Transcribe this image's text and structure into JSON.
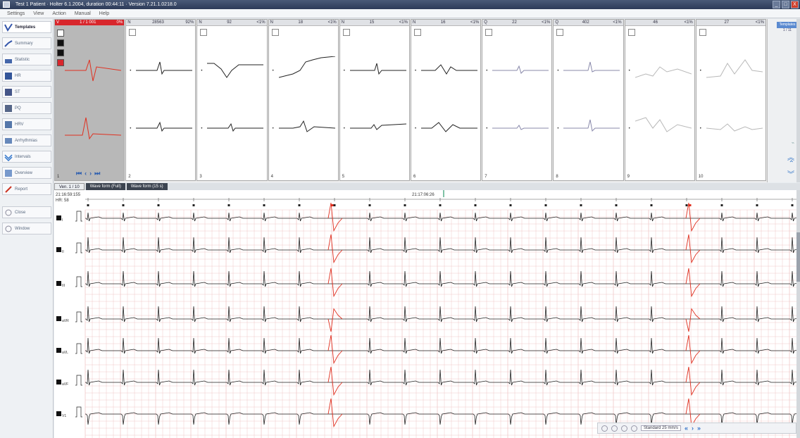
{
  "window": {
    "title": "Test 1 Patient · Holter 6.1.2004, duration 00:44:11 · Version 7.21.1.0218.0",
    "controls": [
      "_",
      "□",
      "X"
    ]
  },
  "menu": [
    "Settings",
    "View",
    "Action",
    "Manual",
    "Help"
  ],
  "sidebar": {
    "items": [
      {
        "label": "Templates",
        "icon": "templates-icon",
        "active": true
      },
      {
        "label": "Summary",
        "icon": "summary-icon"
      },
      {
        "label": "Statistic",
        "icon": "statistic-icon"
      },
      {
        "label": "HR",
        "icon": "hr-icon"
      },
      {
        "label": "ST",
        "icon": "st-icon"
      },
      {
        "label": "PQ",
        "icon": "pq-icon"
      },
      {
        "label": "HRV",
        "icon": "hrv-icon"
      },
      {
        "label": "Arrhythmias",
        "icon": "arrhythmias-icon"
      },
      {
        "label": "Intervals",
        "icon": "intervals-icon"
      },
      {
        "label": "Overview",
        "icon": "overview-icon"
      },
      {
        "label": "Report",
        "icon": "report-icon"
      },
      {
        "label": "Close",
        "icon": "close-doc-icon"
      },
      {
        "label": "Window",
        "icon": "window-icon"
      }
    ]
  },
  "templates": [
    {
      "type": "V",
      "count": "1 / 1 001",
      "pct": "0%",
      "num": "1",
      "first": true
    },
    {
      "type": "N",
      "count": "28563",
      "pct": "92%",
      "num": "2"
    },
    {
      "type": "N",
      "count": "92",
      "pct": "<1%",
      "num": "3"
    },
    {
      "type": "N",
      "count": "18",
      "pct": "<1%",
      "num": "4"
    },
    {
      "type": "N",
      "count": "15",
      "pct": "<1%",
      "num": "5"
    },
    {
      "type": "N",
      "count": "16",
      "pct": "<1%",
      "num": "6"
    },
    {
      "type": "Q",
      "count": "22",
      "pct": "<1%",
      "num": "7"
    },
    {
      "type": "Q",
      "count": "402",
      "pct": "<1%",
      "num": "8"
    },
    {
      "type": "",
      "count": "46",
      "pct": "<1%",
      "num": "9"
    },
    {
      "type": "",
      "count": "27",
      "pct": "<1%",
      "num": "10"
    }
  ],
  "template_right": {
    "btn": "Templates",
    "sub": "1 / 11"
  },
  "tabs": [
    {
      "label": "Ven. 1 / 10",
      "active": true
    },
    {
      "label": "Wave form (Full)"
    },
    {
      "label": "Wave form (15 s)"
    }
  ],
  "ecg": {
    "time_start": "21:16:59:155",
    "hr_label": "HR: 58",
    "cursor_time": "21:17:06:26",
    "lead_labels": [
      "I",
      "II",
      "III",
      "aVR",
      "aVL",
      "aVF",
      "V1"
    ],
    "colors": {
      "normal": "#222222",
      "ventricular": "#e03020",
      "grid": "#f0c8c8",
      "grid_major": "#e8a8a8"
    }
  },
  "toolbar": {
    "selection_label": "Standard  25 mm/s",
    "icons": [
      "lasso-icon",
      "zoom-in-icon",
      "zoom-out-icon",
      "measure-icon"
    ]
  }
}
